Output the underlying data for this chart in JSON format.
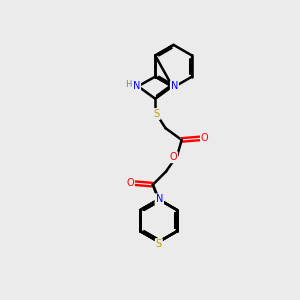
{
  "background_color": "#ebebeb",
  "line_color": "#000000",
  "bond_width": 1.8,
  "atom_colors": {
    "N": "#0000ff",
    "O": "#ff0000",
    "S": "#b8a000",
    "H": "#7a7a7a",
    "C": "#000000"
  },
  "figsize": [
    3.0,
    3.0
  ],
  "dpi": 100
}
